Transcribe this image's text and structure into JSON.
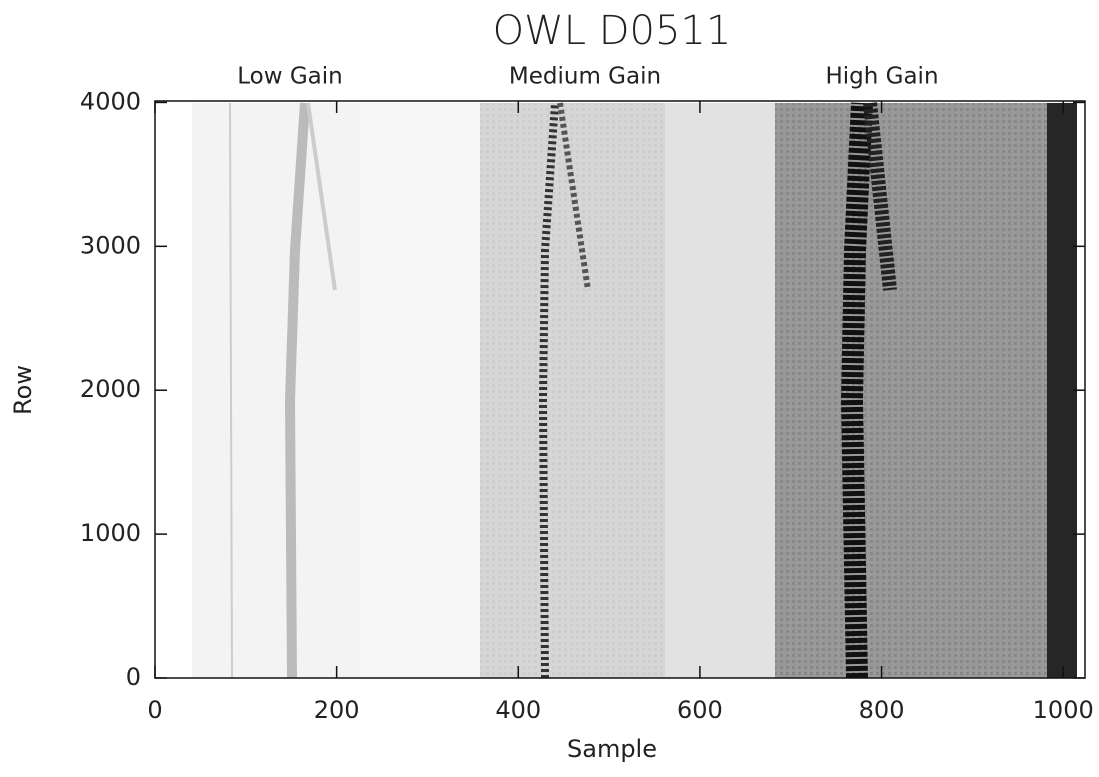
{
  "chart_data": {
    "type": "image",
    "title": "OWL D0511",
    "annotations": [
      "Low Gain",
      "Medium Gain",
      "High Gain"
    ],
    "xlabel": "Sample",
    "ylabel": "Row",
    "xlim": [
      0,
      1024
    ],
    "xticks": [
      0,
      200,
      400,
      600,
      800,
      1000
    ],
    "ylim": [
      0,
      4010
    ],
    "yticks": [
      0,
      1000,
      2000,
      3000,
      4000
    ]
  }
}
